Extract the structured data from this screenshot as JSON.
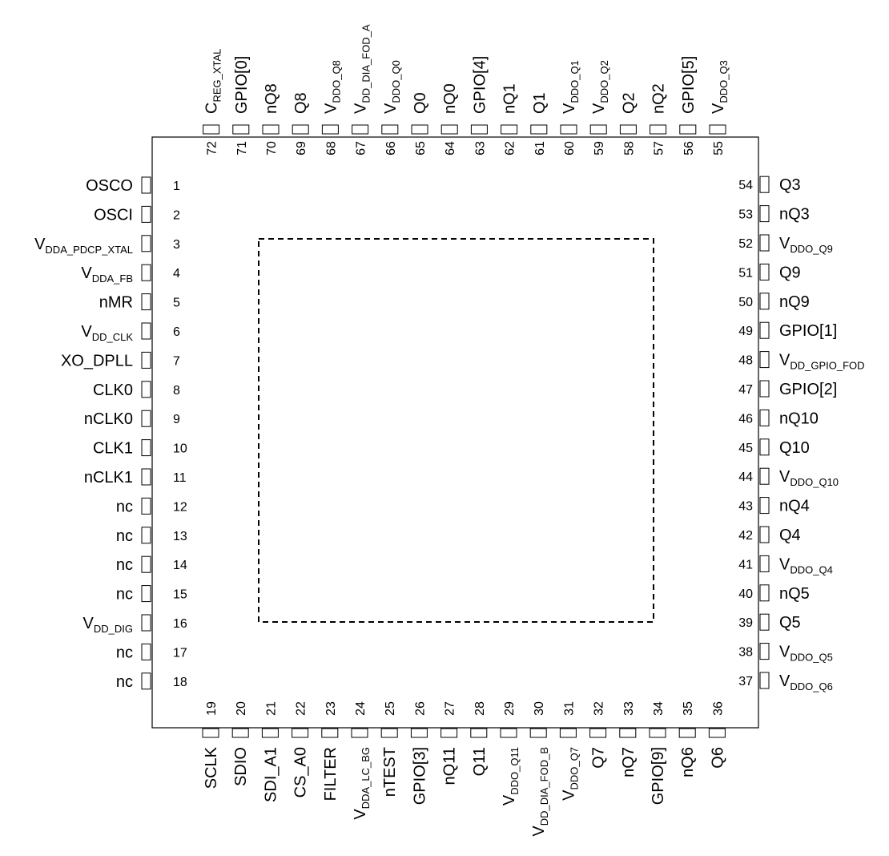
{
  "package": {
    "pins": [
      {
        "num": "1",
        "name": "OSCO"
      },
      {
        "num": "2",
        "name": "OSCI"
      },
      {
        "num": "3",
        "name": "V",
        "sub": "DDA_PDCP_XTAL"
      },
      {
        "num": "4",
        "name": "V",
        "sub": "DDA_FB"
      },
      {
        "num": "5",
        "name": "nMR"
      },
      {
        "num": "6",
        "name": "V",
        "sub": "DD_CLK"
      },
      {
        "num": "7",
        "name": "XO_DPLL"
      },
      {
        "num": "8",
        "name": "CLK0"
      },
      {
        "num": "9",
        "name": "nCLK0"
      },
      {
        "num": "10",
        "name": "CLK1"
      },
      {
        "num": "11",
        "name": "nCLK1"
      },
      {
        "num": "12",
        "name": "nc"
      },
      {
        "num": "13",
        "name": "nc"
      },
      {
        "num": "14",
        "name": "nc"
      },
      {
        "num": "15",
        "name": "nc"
      },
      {
        "num": "16",
        "name": "V",
        "sub": "DD_DIG"
      },
      {
        "num": "17",
        "name": "nc"
      },
      {
        "num": "18",
        "name": "nc"
      },
      {
        "num": "19",
        "name": "SCLK"
      },
      {
        "num": "20",
        "name": "SDIO"
      },
      {
        "num": "21",
        "name": "SDI_A1"
      },
      {
        "num": "22",
        "name": "CS_A0"
      },
      {
        "num": "23",
        "name": "FILTER"
      },
      {
        "num": "24",
        "name": "V",
        "sub": "DDA_LC_BG"
      },
      {
        "num": "25",
        "name": "nTEST"
      },
      {
        "num": "26",
        "name": "GPIO[3]"
      },
      {
        "num": "27",
        "name": "nQ11"
      },
      {
        "num": "28",
        "name": "Q11"
      },
      {
        "num": "29",
        "name": "V",
        "sub": "DDO_Q11"
      },
      {
        "num": "30",
        "name": "V",
        "sub": "DD_DIA_FOD_B"
      },
      {
        "num": "31",
        "name": "V",
        "sub": "DDO_Q7"
      },
      {
        "num": "32",
        "name": "Q7"
      },
      {
        "num": "33",
        "name": "nQ7"
      },
      {
        "num": "34",
        "name": "GPIO[9]"
      },
      {
        "num": "35",
        "name": "nQ6"
      },
      {
        "num": "36",
        "name": "Q6"
      },
      {
        "num": "37",
        "name": "V",
        "sub": "DDO_Q6"
      },
      {
        "num": "38",
        "name": "V",
        "sub": "DDO_Q5"
      },
      {
        "num": "39",
        "name": "Q5"
      },
      {
        "num": "40",
        "name": "nQ5"
      },
      {
        "num": "41",
        "name": "V",
        "sub": "DDO_Q4"
      },
      {
        "num": "42",
        "name": "Q4"
      },
      {
        "num": "43",
        "name": "nQ4"
      },
      {
        "num": "44",
        "name": "V",
        "sub": "DDO_Q10"
      },
      {
        "num": "45",
        "name": "Q10"
      },
      {
        "num": "46",
        "name": "nQ10"
      },
      {
        "num": "47",
        "name": "GPIO[2]"
      },
      {
        "num": "48",
        "name": "V",
        "sub": "DD_GPIO_FOD"
      },
      {
        "num": "49",
        "name": "GPIO[1]"
      },
      {
        "num": "50",
        "name": "nQ9"
      },
      {
        "num": "51",
        "name": "Q9"
      },
      {
        "num": "52",
        "name": "V",
        "sub": "DDO_Q9"
      },
      {
        "num": "53",
        "name": "nQ3"
      },
      {
        "num": "54",
        "name": "Q3"
      },
      {
        "num": "55",
        "name": "V",
        "sub": "DDO_Q3"
      },
      {
        "num": "56",
        "name": "GPIO[5]"
      },
      {
        "num": "57",
        "name": "nQ2"
      },
      {
        "num": "58",
        "name": "Q2"
      },
      {
        "num": "59",
        "name": "V",
        "sub": "DDO_Q2"
      },
      {
        "num": "60",
        "name": "V",
        "sub": "DDO_Q1"
      },
      {
        "num": "61",
        "name": "Q1"
      },
      {
        "num": "62",
        "name": "nQ1"
      },
      {
        "num": "63",
        "name": "GPIO[4]"
      },
      {
        "num": "64",
        "name": "nQ0"
      },
      {
        "num": "65",
        "name": "Q0"
      },
      {
        "num": "66",
        "name": "V",
        "sub": "DDO_Q0"
      },
      {
        "num": "67",
        "name": "V",
        "sub": "DD_DIA_FOD_A"
      },
      {
        "num": "68",
        "name": "V",
        "sub": "DDO_Q8"
      },
      {
        "num": "69",
        "name": "Q8"
      },
      {
        "num": "70",
        "name": "nQ8"
      },
      {
        "num": "71",
        "name": "GPIO[0]"
      },
      {
        "num": "72",
        "name": "C",
        "sub": "REG_XTAL"
      }
    ]
  }
}
